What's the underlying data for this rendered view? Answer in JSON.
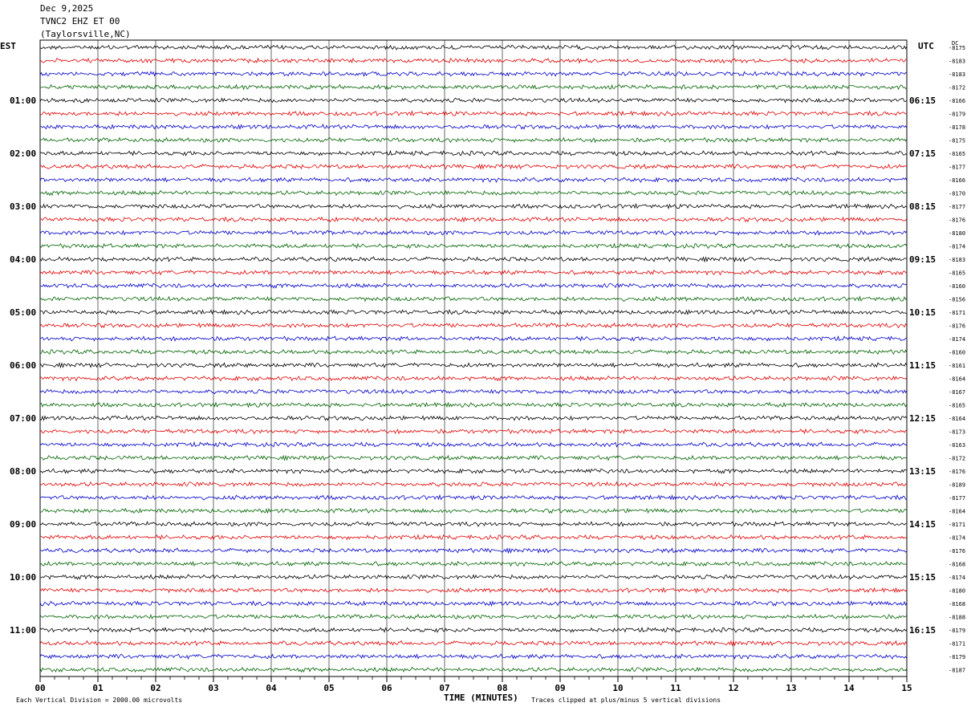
{
  "header": {
    "date": "Dec 9,2025",
    "station": "TVNC2 EHZ ET 00",
    "location": "(Taylorsville,NC)"
  },
  "left_timezone": "EST",
  "right_timezone": "UTC",
  "dc_label": "DC",
  "footer": {
    "scale_note": "Each Vertical Division = 2000.00 microvolts",
    "xlabel": "TIME (MINUTES)",
    "clip_note": "Traces clipped at plus/minus 5 vertical divisions"
  },
  "colors": {
    "trace_cycle": [
      "#000000",
      "#e00000",
      "#0000c8",
      "#006400"
    ],
    "grid": "#000000"
  },
  "chart_data": {
    "type": "line",
    "title": "TVNC2 EHZ ET 00",
    "xlabel": "TIME (MINUTES)",
    "ylabel": "",
    "xlim": [
      0,
      15
    ],
    "x_ticks": [
      "00",
      "01",
      "02",
      "03",
      "04",
      "05",
      "06",
      "07",
      "08",
      "09",
      "10",
      "11",
      "12",
      "13",
      "14",
      "15"
    ],
    "left_hour_labels": [
      "01:00",
      "02:00",
      "03:00",
      "04:00",
      "05:00",
      "06:00",
      "07:00",
      "08:00",
      "09:00",
      "10:00",
      "11:00"
    ],
    "right_hour_labels": [
      "06:15",
      "07:15",
      "08:15",
      "09:15",
      "10:15",
      "11:15",
      "12:15",
      "13:15",
      "14:15",
      "15:15",
      "16:15"
    ],
    "dc_offsets": [
      "-8175",
      "-8183",
      "-8183",
      "-8172",
      "-8166",
      "-8179",
      "-8178",
      "-8175",
      "-8165",
      "-8177",
      "-8166",
      "-8170",
      "-8177",
      "-8176",
      "-8180",
      "-8174",
      "-8183",
      "-8165",
      "-8160",
      "-8156",
      "-8171",
      "-8176",
      "-8174",
      "-8160",
      "-8161",
      "-8164",
      "-8167",
      "-8165",
      "-8164",
      "-8173",
      "-8163",
      "-8172",
      "-8176",
      "-8189",
      "-8177",
      "-8164",
      "-8171",
      "-8174",
      "-8176",
      "-8168",
      "-8174",
      "-8180",
      "-8168",
      "-8188",
      "-8179",
      "-8171",
      "-8179",
      "-8187"
    ],
    "trace_count": 48,
    "traces_per_hour": 4,
    "minutes_per_trace": 15,
    "scale_microvolts_per_division": 2000,
    "clip_divisions": 5,
    "grid": true
  }
}
